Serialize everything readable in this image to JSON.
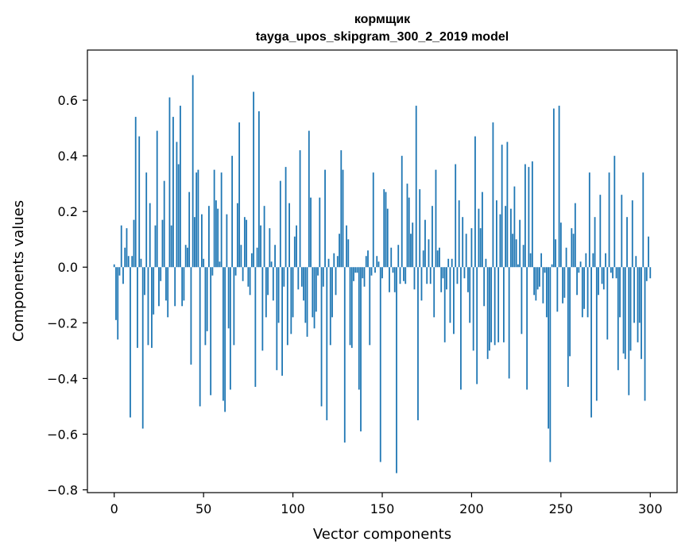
{
  "chart_data": {
    "type": "bar",
    "title": "кормщик",
    "subtitle": "tayga_upos_skipgram_300_2_2019 model",
    "xlabel": "Vector components",
    "ylabel": "Components values",
    "xlim": [
      -15,
      315
    ],
    "ylim": [
      -0.81,
      0.78
    ],
    "xticks": [
      0,
      50,
      100,
      150,
      200,
      250,
      300
    ],
    "yticks": [
      -0.8,
      -0.6,
      -0.4,
      -0.2,
      0.0,
      0.2,
      0.4,
      0.6
    ],
    "ytick_labels": [
      "−0.8",
      "−0.6",
      "−0.4",
      "−0.2",
      "0.0",
      "0.2",
      "0.4",
      "0.6"
    ],
    "grid": false,
    "bar_color": "#1f77b4",
    "values": [
      0.01,
      -0.19,
      -0.26,
      -0.03,
      0.15,
      -0.06,
      0.07,
      0.14,
      0.04,
      -0.54,
      0.04,
      0.17,
      0.54,
      -0.29,
      0.47,
      0.03,
      -0.58,
      -0.1,
      0.34,
      -0.28,
      0.23,
      -0.29,
      -0.17,
      0.15,
      0.49,
      -0.14,
      -0.05,
      0.17,
      0.31,
      -0.12,
      -0.18,
      0.61,
      0.15,
      0.54,
      -0.14,
      0.45,
      0.37,
      0.58,
      -0.14,
      -0.12,
      0.08,
      0.07,
      0.27,
      -0.35,
      0.69,
      0.18,
      0.34,
      0.35,
      -0.5,
      0.19,
      0.03,
      -0.28,
      -0.23,
      0.22,
      -0.46,
      -0.03,
      0.35,
      0.24,
      0.21,
      0.02,
      0.34,
      -0.48,
      -0.52,
      0.19,
      -0.22,
      -0.44,
      0.4,
      -0.28,
      -0.03,
      0.23,
      0.52,
      0.08,
      -0.05,
      0.18,
      0.17,
      -0.07,
      -0.1,
      0.05,
      0.63,
      -0.43,
      0.07,
      0.56,
      0.15,
      -0.3,
      0.22,
      -0.18,
      -0.1,
      0.14,
      0.02,
      -0.12,
      0.08,
      -0.37,
      -0.2,
      0.31,
      -0.39,
      -0.07,
      0.36,
      -0.28,
      0.23,
      -0.24,
      -0.18,
      0.11,
      0.15,
      -0.08,
      0.42,
      -0.07,
      -0.12,
      -0.2,
      -0.25,
      0.49,
      0.25,
      -0.18,
      -0.22,
      -0.16,
      -0.03,
      0.25,
      -0.5,
      -0.07,
      0.35,
      -0.55,
      0.03,
      -0.28,
      -0.18,
      0.05,
      -0.1,
      0.04,
      0.12,
      0.42,
      0.35,
      -0.63,
      0.15,
      0.1,
      -0.28,
      -0.29,
      -0.05,
      -0.02,
      -0.02,
      -0.44,
      -0.59,
      -0.04,
      -0.07,
      0.04,
      0.06,
      -0.28,
      -0.03,
      0.34,
      -0.02,
      0.04,
      0.02,
      -0.7,
      -0.04,
      0.28,
      0.27,
      0.21,
      -0.09,
      0.07,
      -0.02,
      -0.09,
      -0.74,
      0.08,
      -0.06,
      0.4,
      -0.05,
      -0.06,
      0.3,
      0.25,
      0.12,
      0.16,
      -0.08,
      0.58,
      -0.55,
      0.28,
      -0.12,
      0.06,
      0.17,
      -0.06,
      0.1,
      -0.06,
      0.22,
      -0.18,
      0.35,
      0.06,
      0.07,
      -0.09,
      -0.04,
      -0.27,
      -0.08,
      0.03,
      -0.2,
      0.03,
      -0.24,
      0.37,
      -0.06,
      0.24,
      -0.44,
      0.18,
      -0.04,
      0.12,
      -0.09,
      -0.2,
      0.14,
      -0.3,
      0.47,
      -0.42,
      0.21,
      0.14,
      0.27,
      -0.14,
      0.03,
      -0.33,
      -0.3,
      -0.27,
      0.52,
      -0.28,
      0.24,
      -0.27,
      0.19,
      0.44,
      -0.27,
      0.22,
      0.45,
      -0.4,
      0.21,
      0.12,
      0.29,
      0.1,
      0.01,
      0.17,
      -0.24,
      0.08,
      0.37,
      -0.44,
      0.36,
      0.05,
      0.38,
      -0.1,
      -0.12,
      -0.08,
      -0.07,
      0.05,
      -0.13,
      -0.02,
      -0.18,
      -0.58,
      -0.7,
      0.01,
      0.57,
      0.1,
      -0.16,
      0.58,
      0.16,
      -0.13,
      -0.11,
      0.07,
      -0.43,
      -0.32,
      0.14,
      0.12,
      0.23,
      -0.1,
      -0.02,
      0.02,
      -0.18,
      -0.15,
      0.05,
      -0.18,
      0.34,
      -0.54,
      0.05,
      0.18,
      -0.48,
      -0.1,
      0.26,
      -0.06,
      -0.08,
      0.05,
      -0.26,
      0.34,
      -0.02,
      -0.04,
      0.4,
      -0.04,
      -0.37,
      -0.18,
      0.26,
      -0.31,
      -0.33,
      0.18,
      -0.46,
      -0.3,
      0.24,
      -0.2,
      0.04,
      -0.27,
      -0.2,
      -0.33,
      0.34,
      -0.48,
      -0.05,
      0.11,
      -0.04
    ]
  }
}
